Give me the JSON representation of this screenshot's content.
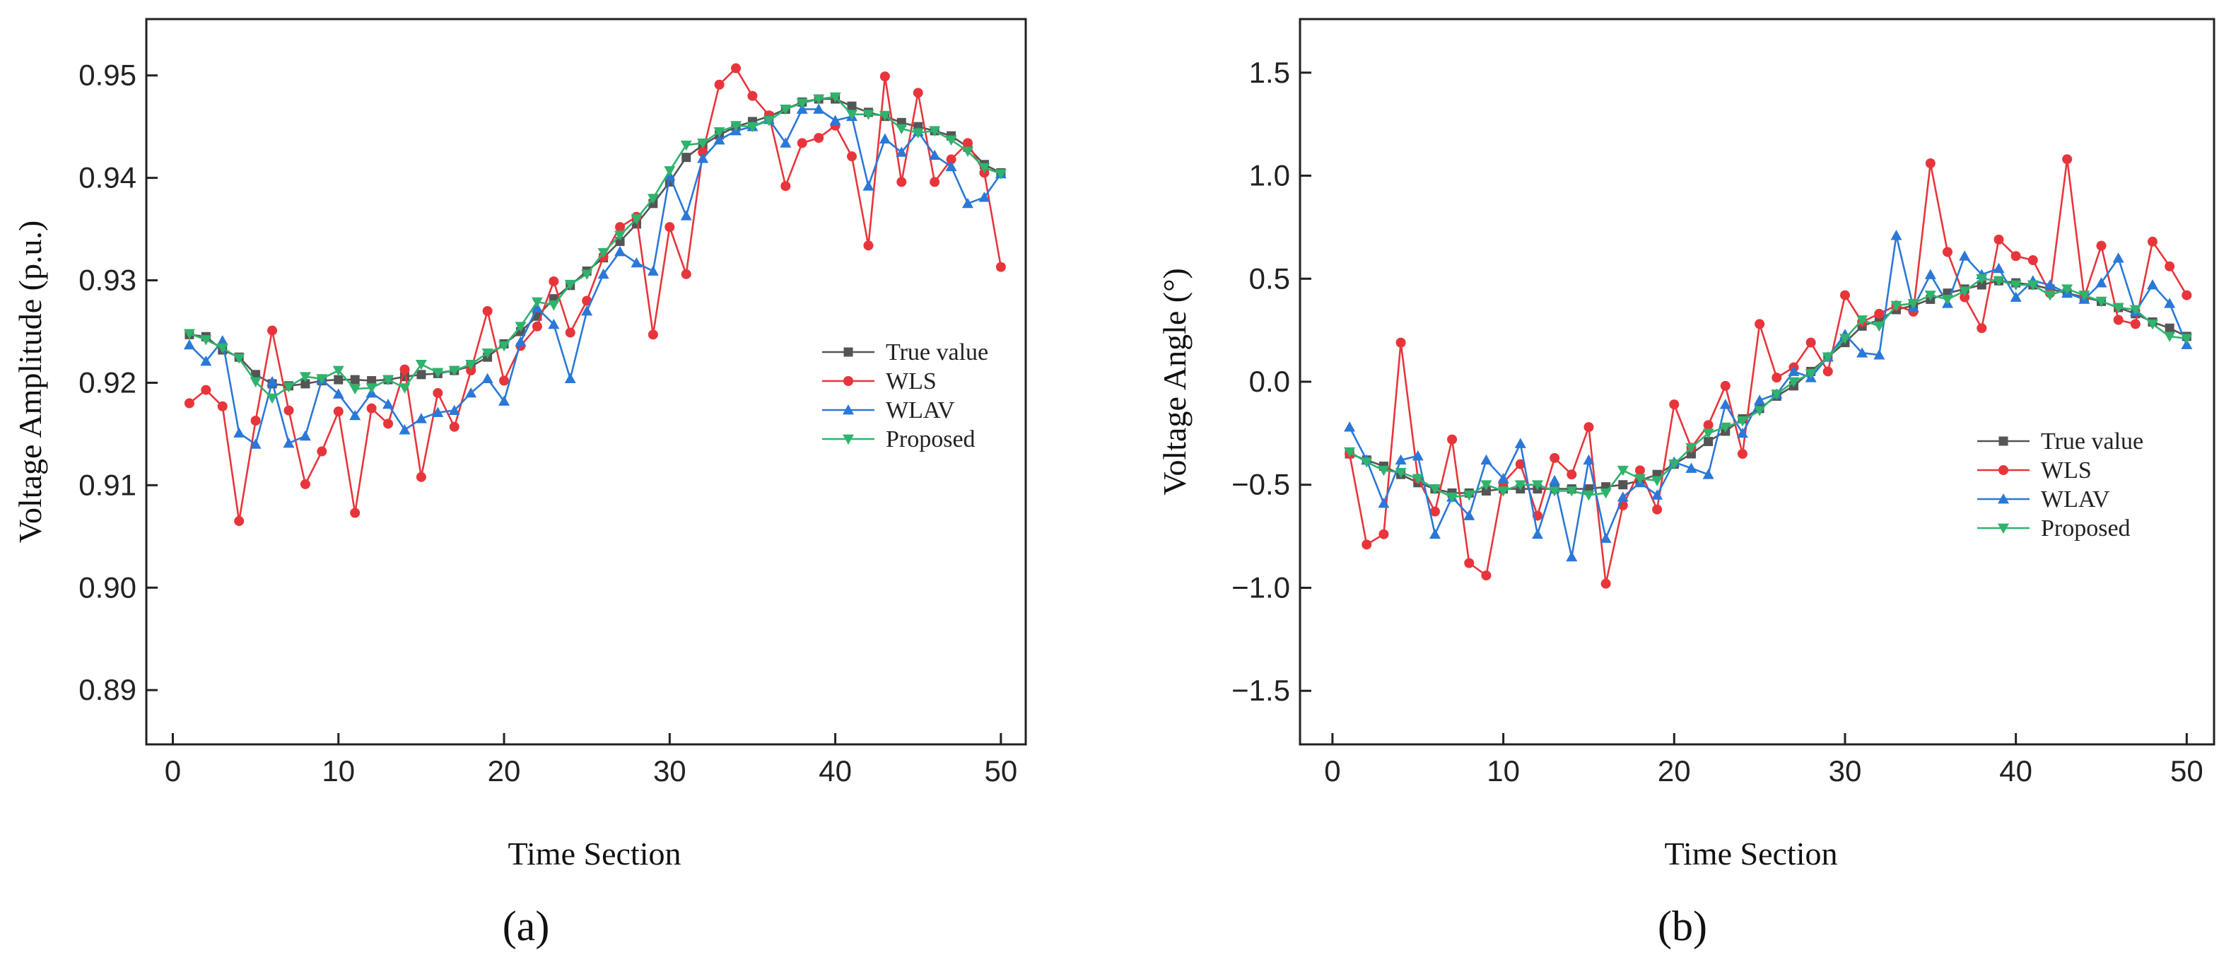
{
  "colors": {
    "true_value": "#555555",
    "wls": "#e8353b",
    "wlav": "#2a78d8",
    "proposed": "#2fb36d"
  },
  "chart_data": [
    {
      "type": "line",
      "panel_label": "(a)",
      "xlabel": "Time Section",
      "ylabel": "Voltage Amplitude (p.u.)",
      "xlim": [
        -1.6,
        51.5
      ],
      "ylim": [
        0.8847,
        0.9555
      ],
      "xticks": [
        0,
        10,
        20,
        30,
        40,
        50
      ],
      "yticks": [
        0.89,
        0.9,
        0.91,
        0.92,
        0.93,
        0.94,
        0.95
      ],
      "ytick_labels": [
        "0.89",
        "0.90",
        "0.91",
        "0.92",
        "0.93",
        "0.94",
        "0.95"
      ],
      "legend_position": "center-right",
      "x": [
        1,
        2,
        3,
        4,
        5,
        6,
        7,
        8,
        9,
        10,
        11,
        12,
        13,
        14,
        15,
        16,
        17,
        18,
        19,
        20,
        21,
        22,
        23,
        24,
        25,
        26,
        27,
        28,
        29,
        30,
        31,
        32,
        33,
        34,
        35,
        36,
        37,
        38,
        39,
        40,
        41,
        42,
        43,
        44,
        45,
        46,
        47,
        48,
        49,
        50
      ],
      "series": [
        {
          "name": "True value",
          "marker": "square",
          "color_key": "true_value",
          "values": [
            0.9247,
            0.9245,
            0.9232,
            0.9225,
            0.9208,
            0.9199,
            0.9197,
            0.9199,
            0.9202,
            0.9203,
            0.9203,
            0.9202,
            0.9203,
            0.9206,
            0.9208,
            0.9209,
            0.9212,
            0.9216,
            0.9225,
            0.9238,
            0.925,
            0.9265,
            0.9282,
            0.9295,
            0.9309,
            0.9322,
            0.9338,
            0.9355,
            0.9375,
            0.9396,
            0.942,
            0.9432,
            0.9442,
            0.945,
            0.9455,
            0.946,
            0.9467,
            0.9474,
            0.9477,
            0.9477,
            0.947,
            0.9464,
            0.946,
            0.9454,
            0.945,
            0.9446,
            0.9441,
            0.943,
            0.9413,
            0.9405
          ]
        },
        {
          "name": "WLS",
          "marker": "circle",
          "color_key": "wls",
          "values": [
            0.918,
            0.9193,
            0.9177,
            0.9065,
            0.9163,
            0.9251,
            0.9173,
            0.9101,
            0.9133,
            0.9172,
            0.9073,
            0.9175,
            0.916,
            0.9213,
            0.9108,
            0.919,
            0.9157,
            0.9212,
            0.927,
            0.9202,
            0.9236,
            0.9255,
            0.9299,
            0.9249,
            0.928,
            0.9323,
            0.9352,
            0.9362,
            0.9247,
            0.9352,
            0.9306,
            0.9425,
            0.9491,
            0.9507,
            0.948,
            0.9461,
            0.9392,
            0.9434,
            0.9439,
            0.9451,
            0.9421,
            0.9334,
            0.9499,
            0.9396,
            0.9483,
            0.9396,
            0.9418,
            0.9434,
            0.9405,
            0.9313
          ]
        },
        {
          "name": "WLAV",
          "marker": "triangle-up",
          "color_key": "wlav",
          "values": [
            0.9237,
            0.9221,
            0.9241,
            0.9151,
            0.914,
            0.9201,
            0.9141,
            0.9148,
            0.9203,
            0.9189,
            0.9168,
            0.919,
            0.9179,
            0.9154,
            0.9165,
            0.9171,
            0.9173,
            0.919,
            0.9204,
            0.9182,
            0.924,
            0.9273,
            0.9257,
            0.9204,
            0.927,
            0.9306,
            0.9328,
            0.9317,
            0.9309,
            0.9402,
            0.9363,
            0.9419,
            0.9437,
            0.9446,
            0.945,
            0.9457,
            0.9434,
            0.9467,
            0.9467,
            0.9456,
            0.946,
            0.9392,
            0.9438,
            0.9425,
            0.9445,
            0.9422,
            0.9411,
            0.9375,
            0.9381,
            0.9404
          ]
        },
        {
          "name": "Proposed",
          "marker": "triangle-down",
          "color_key": "proposed",
          "values": [
            0.9248,
            0.9242,
            0.9234,
            0.9224,
            0.9201,
            0.9185,
            0.9196,
            0.9206,
            0.9204,
            0.9212,
            0.9194,
            0.9195,
            0.9203,
            0.9195,
            0.9218,
            0.921,
            0.9212,
            0.9218,
            0.9229,
            0.9236,
            0.9255,
            0.9279,
            0.9276,
            0.9296,
            0.9306,
            0.9327,
            0.9344,
            0.936,
            0.938,
            0.9407,
            0.9432,
            0.9434,
            0.9445,
            0.9451,
            0.945,
            0.9456,
            0.9467,
            0.9473,
            0.9477,
            0.9479,
            0.9462,
            0.9462,
            0.9461,
            0.9448,
            0.9444,
            0.9446,
            0.9437,
            0.9426,
            0.941,
            0.9404
          ]
        }
      ]
    },
    {
      "type": "line",
      "panel_label": "(b)",
      "xlabel": "Time Section",
      "ylabel": "Voltage Angle (°)",
      "xlim": [
        -1.9,
        51.6
      ],
      "ylim": [
        -1.76,
        1.76
      ],
      "xticks": [
        0,
        10,
        20,
        30,
        40,
        50
      ],
      "yticks": [
        -1.5,
        -1.0,
        -0.5,
        0.0,
        0.5,
        1.0,
        1.5
      ],
      "ytick_labels": [
        "−1.5",
        "−1.0",
        "−0.5",
        "0.0",
        "0.5",
        "1.0",
        "1.5"
      ],
      "legend_position": "center-right",
      "x": [
        1,
        2,
        3,
        4,
        5,
        6,
        7,
        8,
        9,
        10,
        11,
        12,
        13,
        14,
        15,
        16,
        17,
        18,
        19,
        20,
        21,
        22,
        23,
        24,
        25,
        26,
        27,
        28,
        29,
        30,
        31,
        32,
        33,
        34,
        35,
        36,
        37,
        38,
        39,
        40,
        41,
        42,
        43,
        44,
        45,
        46,
        47,
        48,
        49,
        50
      ],
      "series": [
        {
          "name": "True value",
          "marker": "square",
          "color_key": "true_value",
          "values": [
            -0.35,
            -0.38,
            -0.41,
            -0.45,
            -0.49,
            -0.52,
            -0.54,
            -0.54,
            -0.53,
            -0.52,
            -0.52,
            -0.52,
            -0.52,
            -0.52,
            -0.52,
            -0.51,
            -0.5,
            -0.48,
            -0.45,
            -0.4,
            -0.35,
            -0.29,
            -0.24,
            -0.18,
            -0.13,
            -0.07,
            -0.02,
            0.05,
            0.12,
            0.19,
            0.27,
            0.3,
            0.35,
            0.37,
            0.4,
            0.43,
            0.45,
            0.47,
            0.49,
            0.48,
            0.47,
            0.45,
            0.43,
            0.41,
            0.39,
            0.36,
            0.33,
            0.29,
            0.26,
            0.22
          ]
        },
        {
          "name": "WLS",
          "marker": "circle",
          "color_key": "wls",
          "values": [
            -0.35,
            -0.79,
            -0.74,
            0.19,
            -0.47,
            -0.63,
            -0.28,
            -0.88,
            -0.94,
            -0.49,
            -0.4,
            -0.65,
            -0.37,
            -0.45,
            -0.22,
            -0.98,
            -0.6,
            -0.43,
            -0.62,
            -0.11,
            -0.32,
            -0.21,
            -0.02,
            -0.35,
            0.28,
            0.02,
            0.07,
            0.19,
            0.05,
            0.42,
            0.29,
            0.33,
            0.37,
            0.34,
            1.06,
            0.63,
            0.41,
            0.26,
            0.69,
            0.61,
            0.59,
            0.43,
            1.08,
            0.41,
            0.66,
            0.3,
            0.28,
            0.68,
            0.56,
            0.42
          ]
        },
        {
          "name": "WLAV",
          "marker": "triangle-up",
          "color_key": "wlav",
          "values": [
            -0.22,
            -0.38,
            -0.59,
            -0.38,
            -0.36,
            -0.74,
            -0.56,
            -0.65,
            -0.38,
            -0.47,
            -0.3,
            -0.74,
            -0.48,
            -0.85,
            -0.38,
            -0.76,
            -0.56,
            -0.49,
            -0.55,
            -0.39,
            -0.42,
            -0.45,
            -0.11,
            -0.25,
            -0.09,
            -0.06,
            0.05,
            0.02,
            0.12,
            0.23,
            0.14,
            0.13,
            0.71,
            0.36,
            0.52,
            0.38,
            0.61,
            0.52,
            0.55,
            0.41,
            0.49,
            0.47,
            0.43,
            0.4,
            0.48,
            0.6,
            0.34,
            0.47,
            0.38,
            0.18
          ]
        },
        {
          "name": "Proposed",
          "marker": "triangle-down",
          "color_key": "proposed",
          "values": [
            -0.34,
            -0.39,
            -0.43,
            -0.44,
            -0.47,
            -0.52,
            -0.56,
            -0.55,
            -0.5,
            -0.53,
            -0.5,
            -0.5,
            -0.53,
            -0.53,
            -0.55,
            -0.54,
            -0.43,
            -0.47,
            -0.48,
            -0.4,
            -0.32,
            -0.25,
            -0.22,
            -0.19,
            -0.14,
            -0.06,
            0.0,
            0.04,
            0.12,
            0.21,
            0.3,
            0.27,
            0.37,
            0.38,
            0.42,
            0.4,
            0.44,
            0.5,
            0.49,
            0.47,
            0.47,
            0.42,
            0.45,
            0.42,
            0.39,
            0.36,
            0.35,
            0.28,
            0.22,
            0.21
          ]
        }
      ]
    }
  ]
}
